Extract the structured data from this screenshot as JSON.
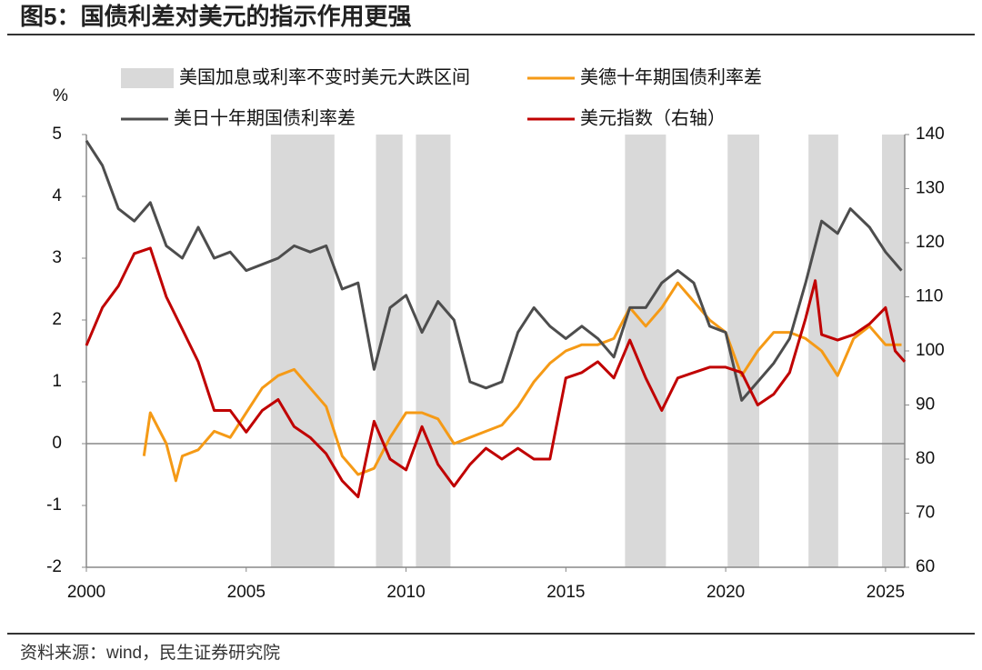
{
  "chart_data": {
    "type": "line",
    "title": "图5：国债利差对美元的指示作用更强",
    "source": "资料来源：wind，民生证券研究院",
    "y_label": "%",
    "xlim": [
      2000,
      2025.6
    ],
    "xticks": [
      2000,
      2005,
      2010,
      2015,
      2020,
      2025
    ],
    "ylim": [
      -2,
      5
    ],
    "yticks": [
      -2,
      -1,
      0,
      1,
      2,
      3,
      4,
      5
    ],
    "y2lim": [
      60,
      140
    ],
    "y2ticks": [
      60,
      70,
      80,
      90,
      100,
      110,
      120,
      130,
      140
    ],
    "bands": {
      "name": "美国加息或利率不变时美元大跌区间",
      "color": "#d9d9d9",
      "ranges": [
        [
          2005.77,
          2007.76
        ],
        [
          2009.06,
          2009.89
        ],
        [
          2010.31,
          2011.39
        ],
        [
          2016.85,
          2018.13
        ],
        [
          2020.06,
          2021.05
        ],
        [
          2022.59,
          2023.52
        ],
        [
          2024.89,
          2025.6
        ]
      ]
    },
    "series": [
      {
        "name": "美德十年期国债利率差",
        "color": "#f59a16",
        "x": [
          2001.8,
          2002.0,
          2002.5,
          2002.8,
          2003.0,
          2003.5,
          2004.0,
          2004.5,
          2005.0,
          2005.5,
          2006.0,
          2006.5,
          2007.0,
          2007.5,
          2008.0,
          2008.5,
          2009.0,
          2009.5,
          2010.0,
          2010.5,
          2011.0,
          2011.5,
          2012.0,
          2012.5,
          2013.0,
          2013.5,
          2014.0,
          2014.5,
          2015.0,
          2015.5,
          2016.0,
          2016.5,
          2017.0,
          2017.5,
          2018.0,
          2018.5,
          2019.0,
          2019.5,
          2020.0,
          2020.5,
          2021.0,
          2021.5,
          2022.0,
          2022.5,
          2023.0,
          2023.5,
          2024.0,
          2024.5,
          2025.0,
          2025.5
        ],
        "values": [
          -0.2,
          0.5,
          0.0,
          -0.6,
          -0.2,
          -0.1,
          0.2,
          0.1,
          0.5,
          0.9,
          1.1,
          1.2,
          0.9,
          0.6,
          -0.2,
          -0.5,
          -0.4,
          0.1,
          0.5,
          0.5,
          0.4,
          0.0,
          0.1,
          0.2,
          0.3,
          0.6,
          1.0,
          1.3,
          1.5,
          1.6,
          1.6,
          1.7,
          2.2,
          1.9,
          2.2,
          2.6,
          2.3,
          2.0,
          1.8,
          1.1,
          1.5,
          1.8,
          1.8,
          1.7,
          1.5,
          1.1,
          1.7,
          1.9,
          1.6,
          1.6
        ]
      },
      {
        "name": "美日十年期国债利率差",
        "color": "#4d4d4d",
        "x": [
          2000.0,
          2000.5,
          2001.0,
          2001.5,
          2002.0,
          2002.5,
          2003.0,
          2003.5,
          2004.0,
          2004.5,
          2005.0,
          2005.5,
          2006.0,
          2006.5,
          2007.0,
          2007.5,
          2008.0,
          2008.5,
          2009.0,
          2009.5,
          2010.0,
          2010.5,
          2011.0,
          2011.5,
          2012.0,
          2012.5,
          2013.0,
          2013.5,
          2014.0,
          2014.5,
          2015.0,
          2015.5,
          2016.0,
          2016.5,
          2017.0,
          2017.5,
          2018.0,
          2018.5,
          2019.0,
          2019.5,
          2020.0,
          2020.5,
          2021.0,
          2021.5,
          2022.0,
          2022.5,
          2023.0,
          2023.5,
          2023.9,
          2024.5,
          2025.0,
          2025.5
        ],
        "values": [
          4.9,
          4.5,
          3.8,
          3.6,
          3.9,
          3.2,
          3.0,
          3.5,
          3.0,
          3.1,
          2.8,
          2.9,
          3.0,
          3.2,
          3.1,
          3.2,
          2.5,
          2.6,
          1.2,
          2.2,
          2.4,
          1.8,
          2.3,
          2.0,
          1.0,
          0.9,
          1.0,
          1.8,
          2.2,
          1.9,
          1.7,
          1.9,
          1.7,
          1.4,
          2.2,
          2.2,
          2.6,
          2.8,
          2.6,
          1.9,
          1.8,
          0.7,
          1.0,
          1.3,
          1.7,
          2.6,
          3.6,
          3.4,
          3.8,
          3.5,
          3.1,
          2.8
        ]
      },
      {
        "name": "美元指数（右轴）",
        "color": "#c00000",
        "axis": "y2",
        "x": [
          2000.0,
          2000.5,
          2001.0,
          2001.5,
          2002.0,
          2002.5,
          2003.0,
          2003.5,
          2004.0,
          2004.5,
          2005.0,
          2005.5,
          2006.0,
          2006.5,
          2007.0,
          2007.5,
          2008.0,
          2008.5,
          2009.0,
          2009.5,
          2010.0,
          2010.5,
          2011.0,
          2011.5,
          2012.0,
          2012.5,
          2013.0,
          2013.5,
          2014.0,
          2014.5,
          2015.0,
          2015.5,
          2016.0,
          2016.5,
          2017.0,
          2017.5,
          2018.0,
          2018.5,
          2019.0,
          2019.5,
          2020.0,
          2020.5,
          2021.0,
          2021.5,
          2022.0,
          2022.5,
          2022.8,
          2023.0,
          2023.5,
          2024.0,
          2024.5,
          2025.0,
          2025.3,
          2025.6
        ],
        "values": [
          101,
          108,
          112,
          118,
          119,
          110,
          104,
          98,
          89,
          89,
          85,
          89,
          91,
          86,
          84,
          81,
          76,
          73,
          87,
          80,
          78,
          86,
          79,
          75,
          79,
          82,
          80,
          82,
          80,
          80,
          95,
          96,
          98,
          95,
          102,
          95,
          89,
          95,
          96,
          97,
          97,
          96,
          90,
          92,
          96,
          106,
          113,
          103,
          102,
          103,
          105,
          108,
          100,
          98
        ]
      }
    ]
  }
}
